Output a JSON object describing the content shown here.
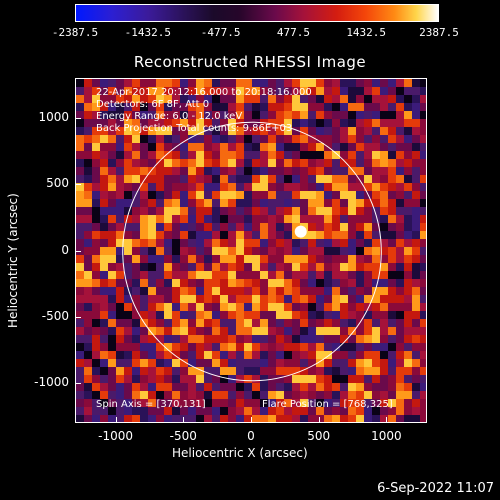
{
  "colorbar": {
    "tick_labels": [
      "-2387.5",
      "-1432.5",
      "-477.5",
      "477.5",
      "1432.5",
      "2387.5"
    ],
    "min": -2387.5,
    "max": 2387.5
  },
  "annotations": {
    "time_range": "22-Apr-2017 20:12:16.000 to 20:18:16.000",
    "detectors": "Detectors: 6F 8F, Att 0",
    "energy_range": "Energy Range: 6.0 - 12.0 keV",
    "method": "Back Projection    Total counts: 9.86E+03",
    "spin_axis": "Spin Axis = [370,131]",
    "flare_position": "Flare Position = [768,325]"
  },
  "footer": {
    "timestamp": "6-Sep-2022 11:07"
  },
  "chart_data": {
    "type": "heatmap",
    "title": "Reconstructed RHESSI Image",
    "xlabel": "Heliocentric X (arcsec)",
    "ylabel": "Heliocentric Y (arcsec)",
    "xlim": [
      -1300,
      1300
    ],
    "ylim": [
      -1300,
      1300
    ],
    "x_tick_labels": [
      "-1000",
      "-500",
      "0",
      "500",
      "1000"
    ],
    "y_tick_labels": [
      "1000",
      "500",
      "0",
      "-500",
      "-1000"
    ],
    "x_ticks": [
      -1000,
      -500,
      0,
      500,
      1000
    ],
    "y_ticks": [
      1000,
      500,
      0,
      -500,
      -1000
    ],
    "solar_limb_radius_arcsec": 955,
    "bright_source": {
      "x": 360,
      "y": 150
    },
    "colors": {
      "limb": "#ffffff",
      "background": "#000000"
    }
  }
}
